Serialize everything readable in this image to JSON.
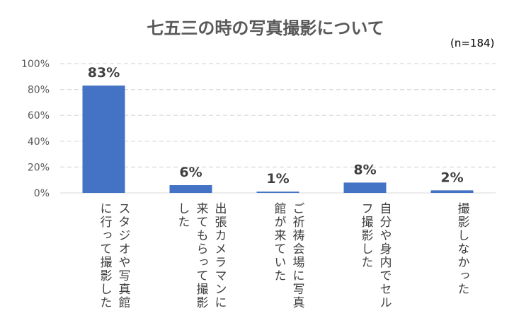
{
  "chart_data": {
    "type": "bar",
    "title": "七五三の時の写真撮影について",
    "note": "(n=184)",
    "categories": [
      "スタジオや写真館に行って撮影した",
      "出張カメラマンに来てもらって撮影した",
      "ご祈祷会場に写真館が来ていた",
      "自分や身内でセルフ撮影した",
      "撮影しなかった"
    ],
    "values": [
      83,
      6,
      1,
      8,
      2
    ],
    "data_labels": [
      "83%",
      "6%",
      "1%",
      "8%",
      "2%"
    ],
    "yticks": [
      "0%",
      "20%",
      "40%",
      "60%",
      "80%",
      "100%"
    ],
    "ylim": [
      0,
      100
    ],
    "xlabel": "",
    "ylabel": "",
    "grid": true,
    "color": "#4472C4"
  }
}
